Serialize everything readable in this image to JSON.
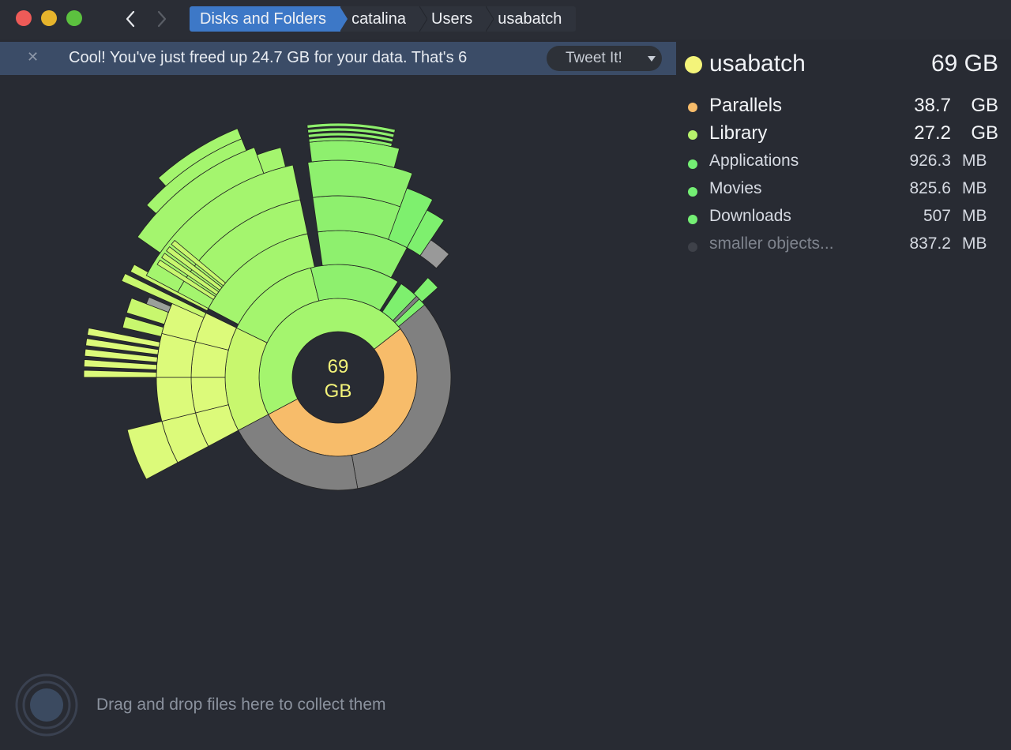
{
  "window": {
    "traffic_lights": [
      "close",
      "minimize",
      "zoom"
    ],
    "nav": {
      "back_icon": "chevron-left-icon",
      "forward_icon": "chevron-right-icon"
    },
    "breadcrumbs": [
      "Disks and Folders",
      "catalina",
      "Users",
      "usabatch"
    ]
  },
  "banner": {
    "message": "Cool! You've just freed up 24.7 GB for your data. That's 6",
    "tweet_label": "Tweet It!"
  },
  "center": {
    "value": "69",
    "unit": "GB"
  },
  "legend": {
    "title": {
      "name": "usabatch",
      "size": "69 GB",
      "color": "#f4f47a"
    },
    "items": [
      {
        "name": "Parallels",
        "value": "38.7",
        "unit": "GB",
        "color": "#f7bc6a"
      },
      {
        "name": "Library",
        "value": "27.2",
        "unit": "GB",
        "color": "#b7f26c"
      },
      {
        "name": "Applications",
        "value": "926.3",
        "unit": "MB",
        "color": "#74ef74"
      },
      {
        "name": "Movies",
        "value": "825.6",
        "unit": "MB",
        "color": "#74ef74"
      },
      {
        "name": "Downloads",
        "value": "507",
        "unit": "MB",
        "color": "#74ef74"
      },
      {
        "name": "smaller objects...",
        "value": "837.2",
        "unit": "MB",
        "color": "#3e4149"
      }
    ]
  },
  "drop_zone": {
    "text": "Drag and drop files here to collect them"
  },
  "colors": {
    "background": "#282b33",
    "accent": "#3d78c7",
    "parallels": "#f7bc6a",
    "free_gray": "#808080",
    "lime": "#c8f76e",
    "green": "#a4f56e"
  }
}
